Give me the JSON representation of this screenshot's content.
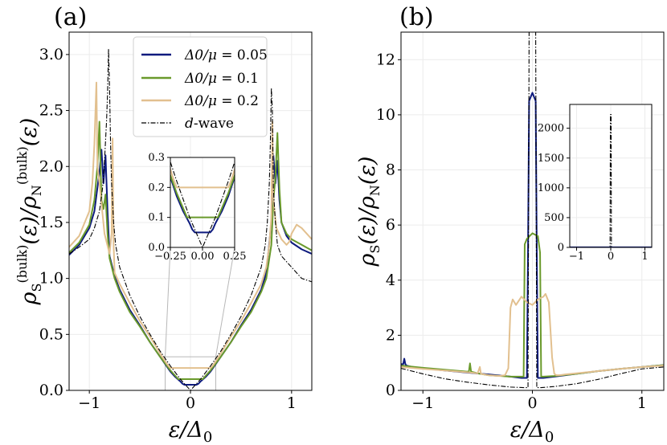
{
  "colors": {
    "c005": "#0d1a7e",
    "c01": "#6a9a2c",
    "c02": "#e2c08f",
    "cdw": "#000000",
    "grid": "#ececec",
    "zoom": "#b8b8b8"
  },
  "chart_data": [
    {
      "id": "a",
      "panel_label": "(a)",
      "type": "line",
      "xlabel": "ε/Δ0",
      "ylabel": "ρS(bulk)(ε)/ρN(bulk)(ε)",
      "xlim": [
        -1.2,
        1.2
      ],
      "ylim": [
        0,
        3.2
      ],
      "xticks": [
        {
          "v": -1,
          "label": "−1"
        },
        {
          "v": 0,
          "label": "0"
        },
        {
          "v": 1,
          "label": "1"
        }
      ],
      "yticks": [
        {
          "v": 0,
          "label": "0.0"
        },
        {
          "v": 0.5,
          "label": "0.5"
        },
        {
          "v": 1.0,
          "label": "1.0"
        },
        {
          "v": 1.5,
          "label": "1.5"
        },
        {
          "v": 2.0,
          "label": "2.0"
        },
        {
          "v": 2.5,
          "label": "2.5"
        },
        {
          "v": 3.0,
          "label": "3.0"
        }
      ],
      "legend": {
        "position": "top-center",
        "entries": [
          {
            "sym": "Δ0/μ",
            "val": "= 0.05",
            "series": "s005"
          },
          {
            "sym": "Δ0/μ",
            "val": "= 0.1",
            "series": "s01"
          },
          {
            "sym": "Δ0/μ",
            "val": "= 0.2",
            "series": "s02"
          },
          {
            "sym": "d",
            "val": "-wave",
            "series": "sdw"
          }
        ]
      },
      "series": [
        {
          "key": "s005",
          "name": "Δ0/μ = 0.05",
          "color": "c005",
          "x": [
            -1.2,
            -1.1,
            -1.0,
            -0.95,
            -0.9,
            -0.88,
            -0.86,
            -0.84,
            -0.82,
            -0.8,
            -0.75,
            -0.7,
            -0.6,
            -0.5,
            -0.4,
            -0.3,
            -0.2,
            -0.15,
            -0.1,
            -0.08,
            -0.06,
            -0.04,
            -0.02,
            0,
            0.02,
            0.04,
            0.06,
            0.08,
            0.1,
            0.15,
            0.2,
            0.3,
            0.4,
            0.5,
            0.6,
            0.7,
            0.75,
            0.8,
            0.82,
            0.84,
            0.86,
            0.88,
            0.9,
            0.95,
            1.0,
            1.1,
            1.2
          ],
          "y": [
            1.21,
            1.3,
            1.45,
            1.6,
            1.95,
            2.15,
            1.85,
            2.1,
            1.6,
            1.2,
            1.02,
            0.9,
            0.72,
            0.58,
            0.43,
            0.3,
            0.17,
            0.12,
            0.08,
            0.06,
            0.05,
            0.05,
            0.05,
            0.05,
            0.05,
            0.05,
            0.05,
            0.06,
            0.08,
            0.12,
            0.17,
            0.3,
            0.43,
            0.58,
            0.72,
            0.9,
            1.05,
            1.5,
            2.1,
            1.85,
            2.05,
            1.7,
            1.5,
            1.38,
            1.32,
            1.26,
            1.22
          ]
        },
        {
          "key": "s01",
          "name": "Δ0/μ = 0.1",
          "color": "c01",
          "x": [
            -1.2,
            -1.1,
            -1.0,
            -0.95,
            -0.92,
            -0.9,
            -0.88,
            -0.86,
            -0.84,
            -0.82,
            -0.8,
            -0.75,
            -0.7,
            -0.6,
            -0.5,
            -0.4,
            -0.3,
            -0.2,
            -0.15,
            -0.12,
            -0.1,
            -0.05,
            0,
            0.05,
            0.1,
            0.12,
            0.15,
            0.2,
            0.3,
            0.4,
            0.5,
            0.6,
            0.7,
            0.75,
            0.8,
            0.82,
            0.84,
            0.86,
            0.88,
            0.9,
            0.95,
            1.0,
            1.1,
            1.2
          ],
          "y": [
            1.23,
            1.32,
            1.48,
            1.7,
            2.0,
            2.4,
            1.7,
            1.62,
            1.75,
            1.4,
            1.18,
            1.0,
            0.88,
            0.7,
            0.57,
            0.43,
            0.3,
            0.18,
            0.13,
            0.1,
            0.1,
            0.1,
            0.1,
            0.1,
            0.1,
            0.1,
            0.13,
            0.18,
            0.3,
            0.43,
            0.57,
            0.7,
            0.88,
            1.0,
            1.3,
            1.7,
            1.9,
            2.3,
            1.8,
            1.5,
            1.4,
            1.35,
            1.3,
            1.25
          ]
        },
        {
          "key": "s02",
          "name": "Δ0/μ = 0.2",
          "color": "c02",
          "x": [
            -1.2,
            -1.1,
            -1.0,
            -0.97,
            -0.95,
            -0.93,
            -0.92,
            -0.9,
            -0.85,
            -0.8,
            -0.78,
            -0.77,
            -0.76,
            -0.75,
            -0.7,
            -0.6,
            -0.5,
            -0.4,
            -0.3,
            -0.25,
            -0.22,
            -0.2,
            -0.1,
            0,
            0.1,
            0.2,
            0.22,
            0.25,
            0.3,
            0.4,
            0.5,
            0.6,
            0.7,
            0.75,
            0.78,
            0.8,
            0.81,
            0.82,
            0.85,
            0.9,
            0.95,
            0.98,
            1.0,
            1.05,
            1.1,
            1.2
          ],
          "y": [
            1.28,
            1.38,
            1.6,
            1.85,
            2.2,
            2.75,
            2.0,
            1.85,
            1.4,
            1.22,
            1.4,
            2.25,
            1.3,
            1.05,
            0.95,
            0.78,
            0.62,
            0.48,
            0.33,
            0.26,
            0.22,
            0.2,
            0.2,
            0.2,
            0.2,
            0.2,
            0.22,
            0.26,
            0.33,
            0.48,
            0.62,
            0.78,
            0.95,
            1.1,
            1.3,
            1.55,
            2.4,
            1.7,
            1.45,
            1.35,
            1.3,
            1.33,
            1.4,
            1.48,
            1.45,
            1.35
          ]
        },
        {
          "key": "sdw",
          "name": "d-wave",
          "color": "cdw",
          "dash": true,
          "x": [
            -1.2,
            -1.1,
            -1.0,
            -0.95,
            -0.9,
            -0.87,
            -0.85,
            -0.83,
            -0.82,
            -0.81,
            -0.8,
            -0.79,
            -0.78,
            -0.76,
            -0.74,
            -0.7,
            -0.6,
            -0.5,
            -0.4,
            -0.3,
            -0.2,
            -0.1,
            0,
            0.1,
            0.2,
            0.3,
            0.4,
            0.5,
            0.6,
            0.7,
            0.74,
            0.76,
            0.78,
            0.79,
            0.8,
            0.81,
            0.82,
            0.84,
            0.86,
            0.9,
            0.95,
            1.0,
            1.1,
            1.2
          ],
          "y": [
            1.22,
            1.28,
            1.35,
            1.45,
            1.6,
            1.8,
            2.05,
            2.4,
            2.65,
            3.05,
            2.7,
            2.2,
            1.85,
            1.5,
            1.3,
            1.1,
            0.85,
            0.66,
            0.5,
            0.35,
            0.22,
            0.1,
            0.0,
            0.1,
            0.22,
            0.35,
            0.5,
            0.66,
            0.85,
            1.1,
            1.3,
            1.5,
            1.85,
            2.2,
            2.7,
            2.5,
            1.8,
            1.5,
            1.3,
            1.2,
            1.15,
            1.1,
            1.0,
            0.97
          ]
        }
      ],
      "inset": {
        "xlim": [
          -0.25,
          0.25
        ],
        "ylim": [
          0,
          0.3
        ],
        "xticks": [
          {
            "v": -0.25,
            "label": "−0.25"
          },
          {
            "v": 0,
            "label": "0.00"
          },
          {
            "v": 0.25,
            "label": "0.25"
          }
        ],
        "yticks": [
          {
            "v": 0,
            "label": "0.0"
          },
          {
            "v": 0.1,
            "label": "0.1"
          },
          {
            "v": 0.2,
            "label": "0.2"
          },
          {
            "v": 0.3,
            "label": "0.3"
          }
        ]
      }
    },
    {
      "id": "b",
      "panel_label": "(b)",
      "type": "line",
      "xlabel": "ε/Δ0",
      "ylabel": "ρS(ε)/ρN(ε)",
      "xlim": [
        -1.2,
        1.2
      ],
      "ylim": [
        0,
        13
      ],
      "xticks": [
        {
          "v": -1,
          "label": "−1"
        },
        {
          "v": 0,
          "label": "0"
        },
        {
          "v": 1,
          "label": "1"
        }
      ],
      "yticks": [
        {
          "v": 0,
          "label": "0"
        },
        {
          "v": 2,
          "label": "2"
        },
        {
          "v": 4,
          "label": "4"
        },
        {
          "v": 6,
          "label": "6"
        },
        {
          "v": 8,
          "label": "8"
        },
        {
          "v": 10,
          "label": "10"
        },
        {
          "v": 12,
          "label": "12"
        }
      ],
      "series": [
        {
          "key": "s005",
          "name": "Δ0/μ = 0.05",
          "color": "c005",
          "x": [
            -1.2,
            -1.18,
            -1.17,
            -1.16,
            -1.15,
            -1.1,
            -1.0,
            -0.8,
            -0.6,
            -0.4,
            -0.2,
            -0.1,
            -0.05,
            -0.04,
            -0.03,
            0,
            0.03,
            0.04,
            0.05,
            0.1,
            0.2,
            0.4,
            0.6,
            0.8,
            1.0,
            1.2
          ],
          "y": [
            0.95,
            0.95,
            1.15,
            0.95,
            0.9,
            0.85,
            0.8,
            0.72,
            0.65,
            0.58,
            0.5,
            0.45,
            0.45,
            5.0,
            10.5,
            10.8,
            10.5,
            5.0,
            0.45,
            0.45,
            0.5,
            0.6,
            0.7,
            0.78,
            0.85,
            0.92
          ]
        },
        {
          "key": "s01",
          "name": "Δ0/μ = 0.1",
          "color": "c01",
          "x": [
            -1.2,
            -1.0,
            -0.8,
            -0.6,
            -0.58,
            -0.57,
            -0.56,
            -0.5,
            -0.4,
            -0.2,
            -0.1,
            -0.08,
            -0.07,
            -0.05,
            0,
            0.05,
            0.07,
            0.08,
            0.1,
            0.2,
            0.4,
            0.6,
            0.8,
            1.0,
            1.2
          ],
          "y": [
            0.9,
            0.82,
            0.75,
            0.68,
            0.68,
            0.98,
            0.68,
            0.62,
            0.55,
            0.5,
            0.5,
            0.5,
            5.3,
            5.5,
            5.7,
            5.6,
            5.0,
            0.5,
            0.5,
            0.52,
            0.6,
            0.7,
            0.78,
            0.85,
            0.92
          ]
        },
        {
          "key": "s02",
          "name": "Δ0/μ = 0.2",
          "color": "c02",
          "x": [
            -1.2,
            -1.0,
            -0.8,
            -0.6,
            -0.5,
            -0.48,
            -0.47,
            -0.4,
            -0.3,
            -0.25,
            -0.22,
            -0.2,
            -0.18,
            -0.15,
            -0.1,
            -0.05,
            0,
            0.05,
            0.1,
            0.12,
            0.15,
            0.18,
            0.2,
            0.22,
            0.25,
            0.3,
            0.4,
            0.6,
            0.8,
            1.0,
            1.2
          ],
          "y": [
            0.85,
            0.78,
            0.72,
            0.66,
            0.62,
            0.85,
            0.6,
            0.55,
            0.52,
            0.55,
            0.8,
            3.0,
            3.3,
            3.1,
            3.4,
            3.2,
            3.1,
            3.3,
            3.4,
            3.5,
            3.2,
            1.2,
            0.6,
            0.55,
            0.55,
            0.58,
            0.62,
            0.7,
            0.78,
            0.85,
            0.9
          ]
        },
        {
          "key": "sdw",
          "name": "d-wave",
          "color": "cdw",
          "dash": true,
          "x": [
            -1.2,
            -1.0,
            -0.8,
            -0.6,
            -0.4,
            -0.2,
            -0.08,
            -0.04,
            -0.03,
            -0.02,
            0,
            0.02,
            0.03,
            0.04,
            0.08,
            0.2,
            0.4,
            0.6,
            0.8,
            1.0,
            1.2
          ],
          "y": [
            0.8,
            0.6,
            0.42,
            0.3,
            0.2,
            0.12,
            0.1,
            0.1,
            13.0,
            13.0,
            13.0,
            13.0,
            13.0,
            0.1,
            0.1,
            0.14,
            0.24,
            0.4,
            0.6,
            0.78,
            0.85
          ]
        }
      ],
      "inset": {
        "xlim": [
          -1.2,
          1.2
        ],
        "ylim": [
          0,
          2400
        ],
        "xticks": [
          {
            "v": -1,
            "label": "−1"
          },
          {
            "v": 0,
            "label": "0"
          },
          {
            "v": 1,
            "label": "1"
          }
        ],
        "yticks": [
          {
            "v": 0,
            "label": "0"
          },
          {
            "v": 500,
            "label": "500"
          },
          {
            "v": 1000,
            "label": "1000"
          },
          {
            "v": 1500,
            "label": "1500"
          },
          {
            "v": 2000,
            "label": "2000"
          }
        ],
        "series": [
          {
            "key": "sdw",
            "color": "cdw",
            "dash": true,
            "x": [
              -1.2,
              -0.02,
              -0.01,
              0,
              0.01,
              0.02,
              1.2
            ],
            "y": [
              5,
              5,
              2230,
              2230,
              2230,
              5,
              5
            ]
          },
          {
            "key": "s005",
            "color": "c005",
            "x": [
              -1.2,
              1.2
            ],
            "y": [
              5,
              5
            ]
          }
        ]
      }
    }
  ]
}
